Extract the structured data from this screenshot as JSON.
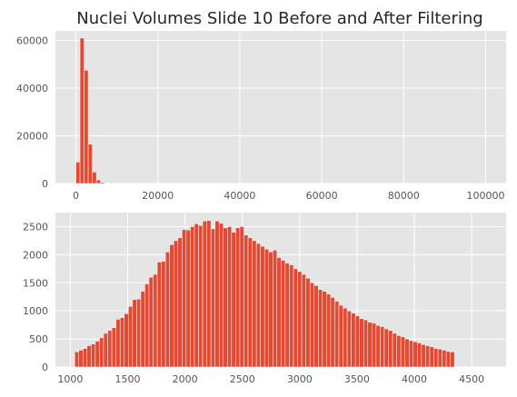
{
  "chart_data": [
    {
      "type": "bar",
      "title": "Nuclei Volumes Slide 10 Before and After Filtering",
      "xlabel": "",
      "ylabel": "",
      "xlim": [
        -5000,
        105000
      ],
      "ylim": [
        0,
        64000
      ],
      "grid": true,
      "xticks": [
        0,
        20000,
        40000,
        60000,
        80000,
        100000
      ],
      "yticks": [
        0,
        20000,
        40000,
        60000
      ],
      "bin_start": 0,
      "bin_width": 1000,
      "values": [
        9000,
        61000,
        47500,
        16500,
        4800,
        1500,
        500,
        200,
        100
      ],
      "color": "#E24A33"
    },
    {
      "type": "bar",
      "title": "",
      "xlabel": "",
      "ylabel": "",
      "xlim": [
        870,
        4800
      ],
      "ylim": [
        0,
        2750
      ],
      "grid": true,
      "xticks": [
        1000,
        1500,
        2000,
        2500,
        3000,
        3500,
        4000,
        4500
      ],
      "yticks": [
        0,
        500,
        1000,
        1500,
        2000,
        2500
      ],
      "bin_start": 1038,
      "bin_width": 36,
      "values": [
        270,
        300,
        330,
        380,
        410,
        460,
        520,
        600,
        650,
        700,
        850,
        880,
        950,
        1080,
        1200,
        1210,
        1350,
        1480,
        1600,
        1650,
        1870,
        1880,
        2050,
        2180,
        2250,
        2300,
        2450,
        2440,
        2500,
        2550,
        2520,
        2600,
        2610,
        2460,
        2600,
        2560,
        2480,
        2500,
        2400,
        2480,
        2500,
        2350,
        2300,
        2250,
        2200,
        2150,
        2100,
        2050,
        2080,
        1950,
        1900,
        1850,
        1820,
        1750,
        1700,
        1650,
        1580,
        1500,
        1450,
        1380,
        1350,
        1300,
        1240,
        1170,
        1100,
        1050,
        1000,
        960,
        910,
        860,
        840,
        800,
        780,
        740,
        720,
        680,
        650,
        600,
        560,
        540,
        500,
        470,
        450,
        430,
        400,
        380,
        360,
        330,
        320,
        300,
        280,
        270
      ],
      "color": "#E24A33"
    }
  ]
}
